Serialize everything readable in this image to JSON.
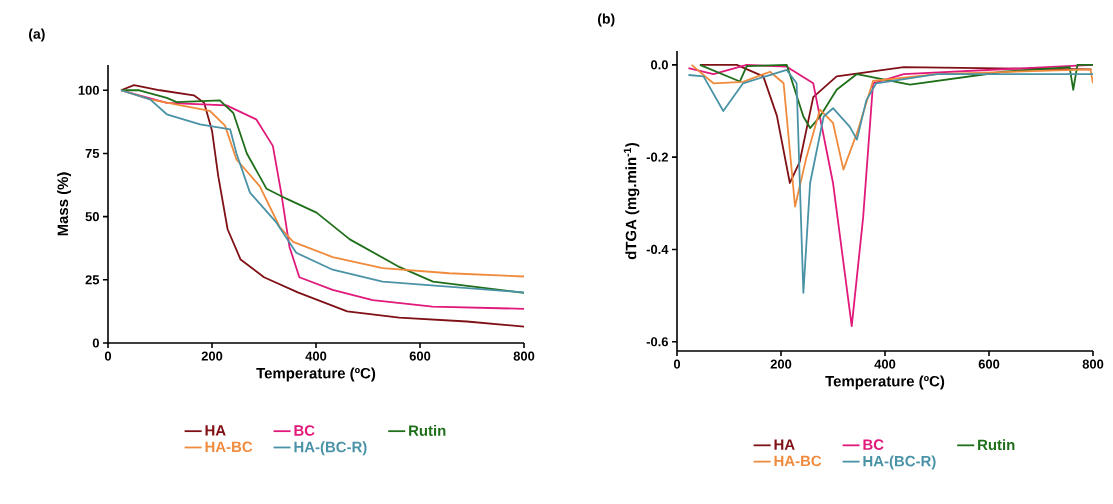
{
  "chart_data": [
    {
      "type": "line",
      "title": "(a)",
      "xlabel": "Temperature (ºC)",
      "ylabel": "Mass (%)",
      "xlim": [
        0,
        800
      ],
      "ylim": [
        0,
        110
      ],
      "xticks": [
        0,
        200,
        400,
        600,
        800
      ],
      "yticks": [
        0,
        25,
        50,
        75,
        100
      ],
      "legend": "bottom",
      "series": [
        {
          "name": "HA",
          "color": "#7f1015",
          "x": [
            25,
            50,
            100,
            165,
            185,
            200,
            212,
            230,
            255,
            300,
            365,
            460,
            560,
            690,
            800
          ],
          "values": [
            100,
            102,
            100,
            98,
            95,
            84,
            66,
            45,
            33,
            26,
            20,
            12.5,
            10,
            8.5,
            6.5
          ]
        },
        {
          "name": "BC",
          "color": "#e0197a",
          "x": [
            25,
            60,
            113,
            228,
            285,
            317,
            333,
            349,
            368,
            432,
            509,
            624,
            800
          ],
          "values": [
            100,
            98,
            95,
            94,
            88.5,
            78,
            59.5,
            38,
            26,
            21,
            17,
            14.4,
            13.5
          ]
        },
        {
          "name": "Rutin",
          "color": "#1f6f1a",
          "x": [
            25,
            60,
            113,
            132,
            215,
            241,
            267,
            305,
            344,
            401,
            465,
            561,
            625,
            800
          ],
          "values": [
            100,
            100,
            97,
            95.3,
            96,
            91,
            75,
            61,
            57,
            51.6,
            41,
            30,
            24.3,
            19.8
          ]
        },
        {
          "name": "HA-BC",
          "color": "#f08a3c",
          "x": [
            25,
            81,
            145,
            196,
            225,
            247,
            292,
            330,
            356,
            432,
            528,
            656,
            800
          ],
          "values": [
            100,
            96.4,
            93.8,
            91.8,
            86,
            72.6,
            62,
            46,
            40,
            34,
            29.6,
            27.6,
            26.3
          ]
        },
        {
          "name": "HA-(BC-R)",
          "color": "#4a93a6",
          "x": [
            25,
            81,
            113,
            177,
            235,
            247,
            273,
            324,
            362,
            432,
            528,
            800
          ],
          "values": [
            100,
            96.4,
            90.5,
            86.5,
            84.5,
            75,
            59.5,
            47.6,
            35.7,
            29,
            24.3,
            20
          ]
        }
      ]
    },
    {
      "type": "line",
      "title": "(b)",
      "xlabel": "Temperature (ºC)",
      "ylabel": "dTGA (mg.min$^{-1}$)",
      "xlim": [
        0,
        800
      ],
      "ylim": [
        -0.62,
        0.03
      ],
      "xticks": [
        0,
        200,
        400,
        600,
        800
      ],
      "yticks": [
        {
          "value": 0,
          "label": "0.0"
        },
        {
          "value": -0.2,
          "label": "-0.2"
        },
        {
          "value": -0.4,
          "label": "-0.4"
        },
        {
          "value": -0.6,
          "label": "-0.6"
        }
      ],
      "legend": "bottom",
      "series": [
        {
          "name": "HA",
          "color": "#7f1015",
          "x": [
            44,
            115,
            166,
            192,
            217,
            236,
            262,
            307,
            436,
            797
          ],
          "values": [
            0,
            0,
            -0.025,
            -0.11,
            -0.256,
            -0.21,
            -0.07,
            -0.025,
            -0.005,
            -0.01
          ]
        },
        {
          "name": "BC",
          "color": "#e0197a",
          "x": [
            22,
            70,
            134,
            211,
            262,
            300,
            336,
            358,
            377,
            436,
            800
          ],
          "values": [
            -0.007,
            -0.02,
            0,
            -0.004,
            -0.04,
            -0.256,
            -0.566,
            -0.33,
            -0.04,
            -0.02,
            0
          ]
        },
        {
          "name": "Rutin",
          "color": "#1f6f1a",
          "x": [
            44,
            121,
            134,
            211,
            243,
            256,
            275,
            307,
            346,
            448,
            628,
            755,
            762,
            770,
            800
          ],
          "values": [
            0,
            -0.036,
            -0.003,
            0,
            -0.112,
            -0.137,
            -0.112,
            -0.054,
            -0.02,
            -0.043,
            -0.015,
            -0.005,
            -0.054,
            0,
            0
          ]
        },
        {
          "name": "HA-BC",
          "color": "#f08a3c",
          "x": [
            28,
            70,
            127,
            179,
            205,
            227,
            249,
            275,
            300,
            320,
            346,
            377,
            500,
            795,
            800
          ],
          "values": [
            0,
            -0.04,
            -0.037,
            -0.015,
            -0.04,
            -0.307,
            -0.2,
            -0.097,
            -0.126,
            -0.227,
            -0.148,
            -0.035,
            -0.02,
            -0.01,
            -0.04
          ]
        },
        {
          "name": "HA-(BC-R)",
          "color": "#4a93a6",
          "x": [
            22,
            51,
            89,
            127,
            211,
            230,
            243,
            256,
            282,
            300,
            332,
            346,
            364,
            383,
            500,
            800
          ],
          "values": [
            -0.022,
            -0.025,
            -0.1,
            -0.04,
            -0.011,
            -0.04,
            -0.494,
            -0.256,
            -0.112,
            -0.094,
            -0.134,
            -0.162,
            -0.077,
            -0.04,
            -0.02,
            -0.02
          ]
        }
      ]
    }
  ]
}
